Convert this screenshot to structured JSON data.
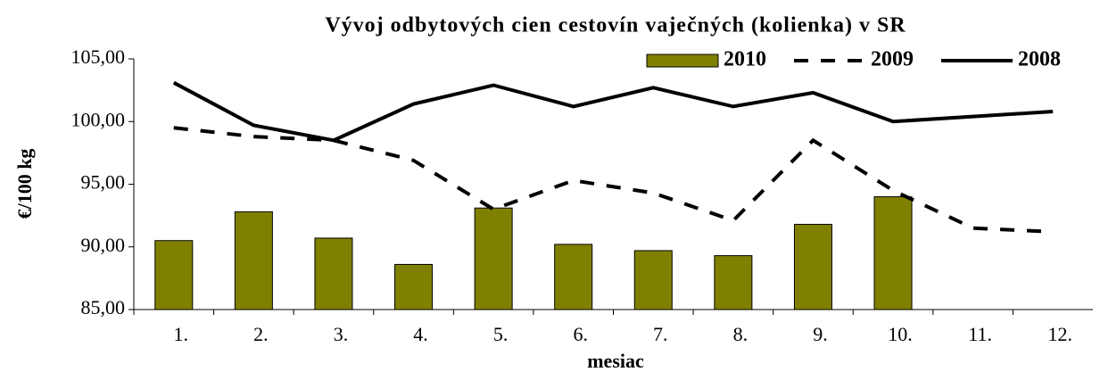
{
  "chart_data": {
    "type": "combo",
    "title": "Vývoj odbytových cien cestovín vaječných (kolienka) v SR",
    "x_label": "mesiac",
    "y_label": "€/100 kg",
    "categories": [
      "1.",
      "2.",
      "3.",
      "4.",
      "5.",
      "6.",
      "7.",
      "8.",
      "9.",
      "10.",
      "11.",
      "12."
    ],
    "series": [
      {
        "name": "2010",
        "type": "bar",
        "color": "#808000",
        "values": [
          90.5,
          92.8,
          90.7,
          88.6,
          93.1,
          90.2,
          89.7,
          89.3,
          91.8,
          94.0,
          null,
          null
        ]
      },
      {
        "name": "2009",
        "type": "line",
        "style": "dashed",
        "color": "#000000",
        "values": [
          99.5,
          98.8,
          98.5,
          96.9,
          93.0,
          95.3,
          94.3,
          92.1,
          98.5,
          94.5,
          91.5,
          91.2
        ]
      },
      {
        "name": "2008",
        "type": "line",
        "style": "solid",
        "color": "#000000",
        "values": [
          103.1,
          99.7,
          98.5,
          101.4,
          102.9,
          101.2,
          102.7,
          101.2,
          102.3,
          100.0,
          100.4,
          100.8
        ]
      }
    ],
    "ylim": [
      85,
      105
    ],
    "yticks": [
      {
        "value": 85,
        "label": "85,00"
      },
      {
        "value": 90,
        "label": "90,00"
      },
      {
        "value": 95,
        "label": "95,00"
      },
      {
        "value": 100,
        "label": "100,00"
      },
      {
        "value": 105,
        "label": "105,00"
      }
    ],
    "legend": "top-right"
  }
}
